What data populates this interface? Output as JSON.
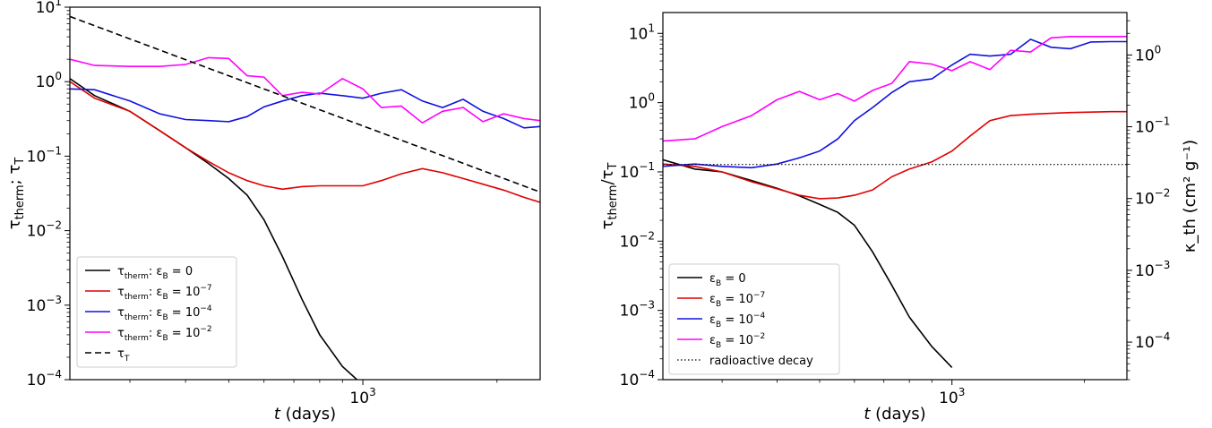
{
  "chart_data": [
    {
      "type": "line",
      "xscale": "log",
      "yscale": "log",
      "xlabel": "t (days)",
      "ylabel": "τ_therm; τ_T",
      "xlim": [
        220,
        2500
      ],
      "ylim": [
        0.0001,
        10
      ],
      "xticks": [
        {
          "value": 1000,
          "label": "10^3"
        }
      ],
      "yticks": [
        {
          "value": 0.0001,
          "label": "10^-4"
        },
        {
          "value": 0.001,
          "label": "10^-3"
        },
        {
          "value": 0.01,
          "label": "10^-2"
        },
        {
          "value": 0.1,
          "label": "10^-1"
        },
        {
          "value": 1,
          "label": "10^0"
        },
        {
          "value": 10,
          "label": "10^1"
        }
      ],
      "legend_placement": "lower-left",
      "series": [
        {
          "name": "τ_therm: ε_B = 0",
          "color": "#000000",
          "dash": "solid",
          "x": [
            220,
            250,
            300,
            350,
            400,
            450,
            500,
            550,
            600,
            660,
            730,
            800,
            900,
            970
          ],
          "y": [
            1.1,
            0.65,
            0.4,
            0.22,
            0.13,
            0.08,
            0.05,
            0.03,
            0.014,
            0.0045,
            0.0012,
            0.0004,
            0.00015,
            0.0001
          ]
        },
        {
          "name": "τ_therm: ε_B = 10^-7",
          "color": "#e00000",
          "dash": "solid",
          "x": [
            220,
            250,
            300,
            350,
            400,
            450,
            500,
            550,
            600,
            660,
            730,
            800,
            900,
            1000,
            1100,
            1220,
            1360,
            1510,
            1680,
            1860,
            2070,
            2300,
            2500
          ],
          "y": [
            1.0,
            0.6,
            0.4,
            0.22,
            0.13,
            0.085,
            0.06,
            0.047,
            0.04,
            0.036,
            0.039,
            0.04,
            0.04,
            0.04,
            0.047,
            0.058,
            0.068,
            0.06,
            0.05,
            0.042,
            0.035,
            0.028,
            0.024
          ]
        },
        {
          "name": "τ_therm: ε_B = 10^-4",
          "color": "#1010e0",
          "dash": "solid",
          "x": [
            220,
            250,
            300,
            350,
            400,
            450,
            500,
            550,
            600,
            660,
            730,
            800,
            900,
            1000,
            1100,
            1220,
            1360,
            1510,
            1680,
            1860,
            2070,
            2300,
            2500
          ],
          "y": [
            0.8,
            0.78,
            0.55,
            0.37,
            0.31,
            0.3,
            0.29,
            0.34,
            0.46,
            0.55,
            0.65,
            0.7,
            0.65,
            0.6,
            0.7,
            0.78,
            0.55,
            0.45,
            0.58,
            0.4,
            0.32,
            0.24,
            0.25
          ]
        },
        {
          "name": "τ_therm: ε_B = 10^-2",
          "color": "#ff00ff",
          "dash": "solid",
          "x": [
            220,
            250,
            300,
            350,
            400,
            450,
            500,
            550,
            600,
            660,
            730,
            800,
            900,
            1000,
            1100,
            1220,
            1360,
            1510,
            1680,
            1860,
            2070,
            2300,
            2500
          ],
          "y": [
            2.0,
            1.65,
            1.6,
            1.6,
            1.7,
            2.1,
            2.05,
            1.2,
            1.15,
            0.65,
            0.72,
            0.68,
            1.1,
            0.8,
            0.45,
            0.47,
            0.28,
            0.4,
            0.45,
            0.29,
            0.37,
            0.32,
            0.3
          ]
        },
        {
          "name": "τ_T",
          "color": "#000000",
          "dash": "dashed",
          "x": [
            220,
            2500
          ],
          "y": [
            7.5,
            0.033
          ]
        }
      ]
    },
    {
      "type": "line",
      "xscale": "log",
      "yscale": "log",
      "xlabel": "t (days)",
      "ylabel": "τ_therm/τ_T",
      "ylabel_right": "κ_th (cm² g⁻¹)",
      "xlim": [
        220,
        2500
      ],
      "ylim": [
        0.0001,
        20
      ],
      "xticks": [
        {
          "value": 1000,
          "label": "10^3"
        }
      ],
      "yticks": [
        {
          "value": 0.0001,
          "label": "10^-4"
        },
        {
          "value": 0.001,
          "label": "10^-3"
        },
        {
          "value": 0.01,
          "label": "10^-2"
        },
        {
          "value": 0.1,
          "label": "10^-1"
        },
        {
          "value": 1,
          "label": "10^0"
        },
        {
          "value": 10,
          "label": "10^1"
        }
      ],
      "ylim_right": [
        3e-05,
        3.9
      ],
      "yticks_right": [
        {
          "value": 0.0001,
          "label": "10^-4"
        },
        {
          "value": 0.001,
          "label": "10^-3"
        },
        {
          "value": 0.01,
          "label": "10^-2"
        },
        {
          "value": 0.1,
          "label": "10^-1"
        },
        {
          "value": 1,
          "label": "10^0"
        }
      ],
      "legend_placement": "lower-left",
      "series": [
        {
          "name": "ε_B = 0",
          "color": "#000000",
          "dash": "solid",
          "x": [
            220,
            260,
            300,
            350,
            400,
            450,
            500,
            550,
            600,
            660,
            730,
            800,
            900,
            1000
          ],
          "y": [
            0.15,
            0.11,
            0.1,
            0.075,
            0.058,
            0.045,
            0.034,
            0.026,
            0.017,
            0.007,
            0.0023,
            0.0008,
            0.0003,
            0.00015
          ]
        },
        {
          "name": "ε_B = 10^-7",
          "color": "#e00000",
          "dash": "solid",
          "x": [
            220,
            260,
            300,
            350,
            400,
            450,
            500,
            550,
            600,
            660,
            730,
            800,
            900,
            1000,
            1100,
            1220,
            1360,
            1510,
            1680,
            1860,
            2070,
            2300,
            2500
          ],
          "y": [
            0.13,
            0.12,
            0.1,
            0.072,
            0.057,
            0.046,
            0.041,
            0.042,
            0.046,
            0.055,
            0.085,
            0.11,
            0.14,
            0.2,
            0.33,
            0.55,
            0.65,
            0.68,
            0.7,
            0.72,
            0.73,
            0.74,
            0.74
          ]
        },
        {
          "name": "ε_B = 10^-4",
          "color": "#1010e0",
          "dash": "solid",
          "x": [
            220,
            260,
            300,
            350,
            400,
            450,
            500,
            550,
            600,
            660,
            730,
            800,
            900,
            1000,
            1100,
            1220,
            1360,
            1510,
            1680,
            1860,
            2070,
            2300,
            2500
          ],
          "y": [
            0.12,
            0.13,
            0.12,
            0.115,
            0.13,
            0.16,
            0.2,
            0.3,
            0.55,
            0.85,
            1.4,
            2.0,
            2.2,
            3.5,
            5.0,
            4.7,
            5.0,
            8.2,
            6.3,
            6.0,
            7.5,
            7.6,
            7.6
          ]
        },
        {
          "name": "ε_B = 10^-2",
          "color": "#ff00ff",
          "dash": "solid",
          "x": [
            220,
            260,
            300,
            350,
            400,
            450,
            500,
            550,
            600,
            660,
            730,
            800,
            900,
            1000,
            1100,
            1220,
            1360,
            1510,
            1680,
            1860,
            2070,
            2300,
            2500
          ],
          "y": [
            0.28,
            0.3,
            0.45,
            0.65,
            1.1,
            1.45,
            1.1,
            1.35,
            1.05,
            1.5,
            1.9,
            3.9,
            3.6,
            2.9,
            3.9,
            3.0,
            5.7,
            5.4,
            8.6,
            9.0,
            9.0,
            9.0,
            9.0
          ]
        },
        {
          "name": "radioactive decay",
          "color": "#000000",
          "dash": "dotted",
          "x": [
            220,
            2500
          ],
          "y": [
            0.128,
            0.128
          ]
        }
      ]
    }
  ]
}
